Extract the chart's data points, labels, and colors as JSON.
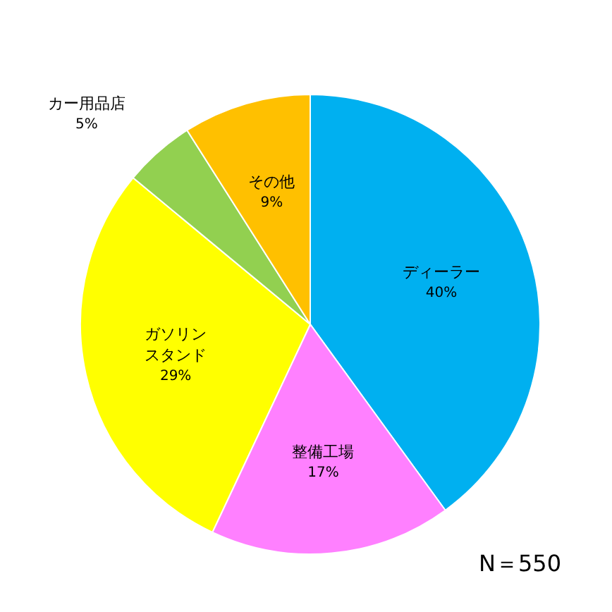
{
  "chart_data": {
    "type": "pie",
    "categories": [
      "ディーラー",
      "整備工場",
      "ガソリンスタンド",
      "カー用品店",
      "その他"
    ],
    "values": [
      40,
      17,
      29,
      5,
      9
    ],
    "colors": [
      "#00b0f0",
      "#ff80ff",
      "#ffff00",
      "#92d050",
      "#ffc000"
    ],
    "value_labels": [
      "40%",
      "17%",
      "29%",
      "5%",
      "9%"
    ],
    "annotations": [
      "N＝550"
    ]
  }
}
